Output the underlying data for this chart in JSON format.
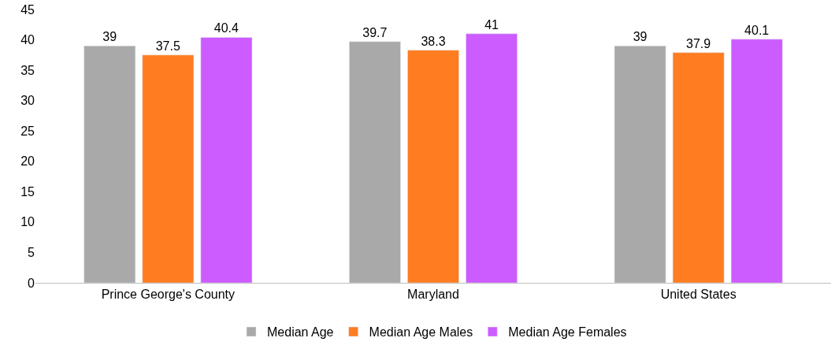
{
  "chart_data": {
    "type": "bar",
    "categories": [
      "Prince George's County",
      "Maryland",
      "United States"
    ],
    "series": [
      {
        "name": "Median Age",
        "color": "#a9a9a9",
        "values": [
          39,
          39.7,
          39
        ]
      },
      {
        "name": "Median Age Males",
        "color": "#ff7c21",
        "values": [
          37.5,
          38.3,
          37.9
        ]
      },
      {
        "name": "Median Age Females",
        "color": "#cc5cff",
        "values": [
          40.4,
          41,
          40.1
        ]
      }
    ],
    "ylim": [
      0,
      45
    ],
    "yticks": [
      0,
      5,
      10,
      15,
      20,
      25,
      30,
      35,
      40,
      45
    ],
    "data_labels": true,
    "grid": false,
    "legend": "bottom"
  }
}
